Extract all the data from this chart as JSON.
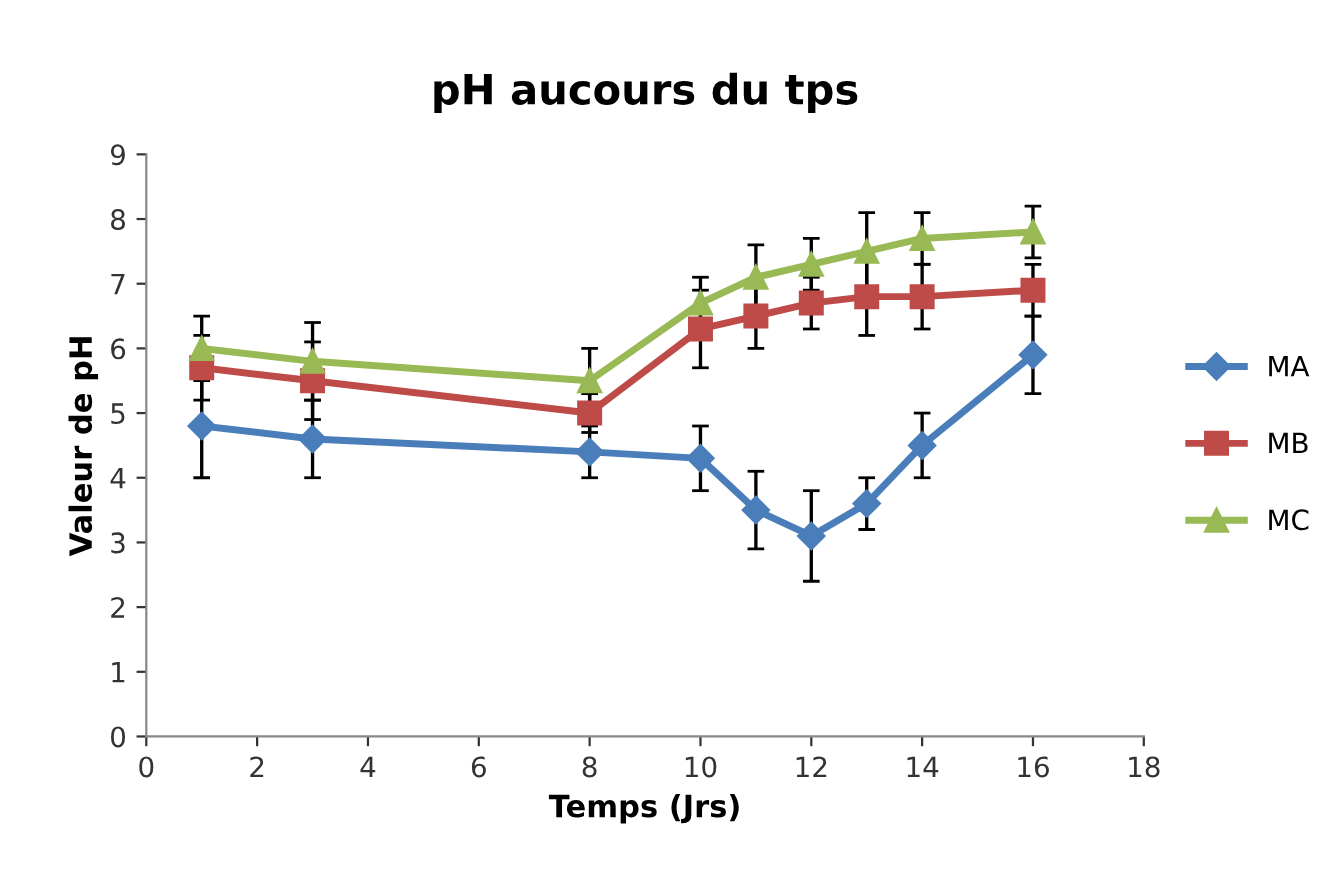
{
  "chart_data": {
    "type": "line",
    "title": "pH aucours du tps",
    "xlabel": "Temps (Jrs)",
    "ylabel": "Valeur de pH",
    "x": [
      1,
      3,
      8,
      10,
      11,
      12,
      13,
      14,
      16
    ],
    "series": [
      {
        "name": "MA",
        "color": "#4a7ebb",
        "marker": "diamond",
        "values": [
          4.8,
          4.6,
          4.4,
          4.3,
          3.5,
          3.1,
          3.6,
          4.5,
          5.9
        ],
        "errors": [
          0.8,
          0.6,
          0.4,
          0.5,
          0.6,
          0.7,
          0.4,
          0.5,
          0.6
        ]
      },
      {
        "name": "MB",
        "color": "#be4b48",
        "marker": "square",
        "values": [
          5.7,
          5.5,
          5.0,
          6.3,
          6.5,
          6.7,
          6.8,
          6.8,
          6.9
        ],
        "errors": [
          0.5,
          0.6,
          0.3,
          0.6,
          0.5,
          0.4,
          0.6,
          0.5,
          0.4
        ]
      },
      {
        "name": "MC",
        "color": "#98b954",
        "marker": "triangle",
        "values": [
          6.0,
          5.8,
          5.5,
          6.7,
          7.1,
          7.3,
          7.5,
          7.7,
          7.8
        ],
        "errors": [
          0.5,
          0.6,
          0.5,
          0.4,
          0.5,
          0.4,
          0.6,
          0.4,
          0.4
        ]
      }
    ],
    "xlim": [
      0,
      18
    ],
    "xticks": [
      0,
      2,
      4,
      6,
      8,
      10,
      12,
      14,
      16,
      18
    ],
    "ylim": [
      0,
      9
    ],
    "yticks": [
      0,
      1,
      2,
      3,
      4,
      5,
      6,
      7,
      8,
      9
    ],
    "grid": false,
    "legend": "right"
  }
}
